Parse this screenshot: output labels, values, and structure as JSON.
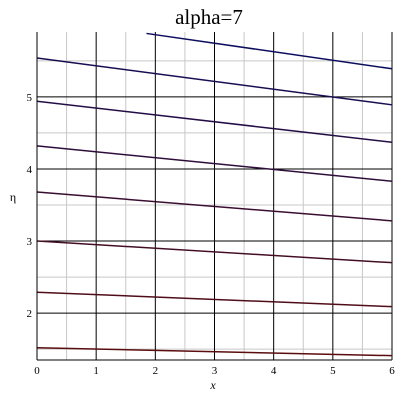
{
  "chart_data": {
    "type": "line",
    "title": "alpha=7",
    "xlabel": "x",
    "ylabel": "η",
    "xlim": [
      0,
      6
    ],
    "ylim": [
      1.35,
      5.9
    ],
    "xticks": [
      0,
      1,
      2,
      3,
      4,
      5,
      6
    ],
    "xtick_labels": [
      "0",
      "1",
      "2",
      "3",
      "4",
      "5",
      "6"
    ],
    "yticks": [
      2,
      3,
      4,
      5
    ],
    "ytick_labels": [
      "2",
      "3",
      "4",
      "5"
    ],
    "grid": true,
    "colors": {
      "top": "#0d0d5e",
      "bottom": "#5a0d0d",
      "grid_major": "#000000",
      "grid_minor": "#c8c8c8"
    },
    "series": [
      {
        "x": [
          0,
          6
        ],
        "y": [
          1.52,
          1.41
        ]
      },
      {
        "x": [
          0,
          6
        ],
        "y": [
          2.29,
          2.09
        ]
      },
      {
        "x": [
          0,
          6
        ],
        "y": [
          3.0,
          2.7
        ]
      },
      {
        "x": [
          0,
          6
        ],
        "y": [
          3.68,
          3.28
        ]
      },
      {
        "x": [
          0,
          6
        ],
        "y": [
          4.32,
          3.83
        ]
      },
      {
        "x": [
          0,
          6
        ],
        "y": [
          4.94,
          4.37
        ]
      },
      {
        "x": [
          0,
          6
        ],
        "y": [
          5.54,
          4.89
        ]
      },
      {
        "x": [
          1.85,
          6
        ],
        "y": [
          5.88,
          5.39
        ]
      }
    ]
  }
}
